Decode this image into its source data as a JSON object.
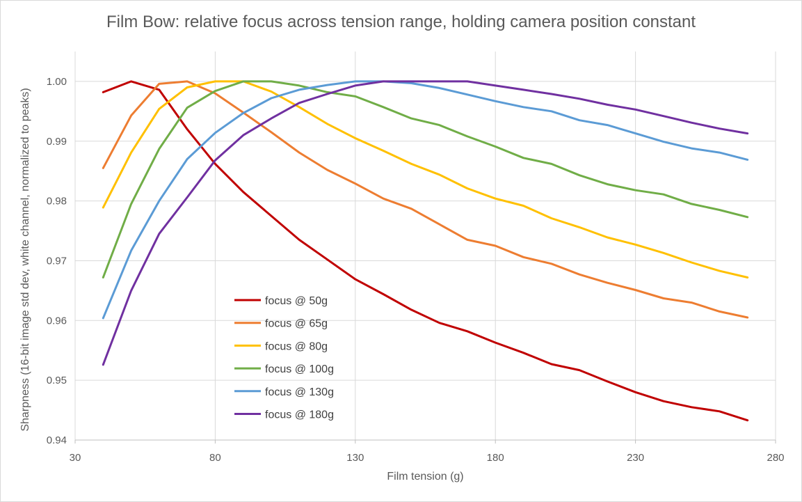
{
  "chart_data": {
    "type": "line",
    "title": "Film Bow: relative focus across tension range, holding camera position constant",
    "xlabel": "Film tension (g)",
    "ylabel": "Sharpness (16-bit image std dev, white channel, normalized to peaks)",
    "xlim": [
      30,
      280
    ],
    "ylim": [
      0.94,
      1.005
    ],
    "x_ticks": [
      "30",
      "80",
      "130",
      "180",
      "230",
      "280"
    ],
    "y_ticks": [
      "0.94",
      "0.95",
      "0.96",
      "0.97",
      "0.98",
      "0.99",
      "1.00"
    ],
    "grid": "horizontal",
    "legend_position": "lower-left inside plot",
    "x": [
      40,
      50,
      60,
      70,
      80,
      90,
      100,
      110,
      120,
      130,
      140,
      150,
      160,
      170,
      180,
      190,
      200,
      210,
      220,
      230,
      240,
      250,
      260,
      270
    ],
    "series": [
      {
        "name": "focus @ 50g",
        "color": "#c00000",
        "values": [
          0.9982,
          1.0,
          0.9986,
          0.992,
          0.9862,
          0.9815,
          0.9775,
          0.9735,
          0.9702,
          0.9669,
          0.9644,
          0.9618,
          0.9596,
          0.9582,
          0.9563,
          0.9546,
          0.9527,
          0.9517,
          0.9498,
          0.948,
          0.9465,
          0.9455,
          0.9448,
          0.9433
        ]
      },
      {
        "name": "focus @ 65g",
        "color": "#ed7d31",
        "values": [
          0.9855,
          0.9943,
          0.9996,
          1.0,
          0.998,
          0.9948,
          0.9915,
          0.9881,
          0.9852,
          0.9829,
          0.9804,
          0.9787,
          0.9761,
          0.9735,
          0.9725,
          0.9706,
          0.9695,
          0.9677,
          0.9663,
          0.9651,
          0.9637,
          0.963,
          0.9615,
          0.9605
        ]
      },
      {
        "name": "focus @ 80g",
        "color": "#ffc000",
        "values": [
          0.9789,
          0.9881,
          0.9954,
          0.999,
          1.0,
          1.0,
          0.9983,
          0.9957,
          0.9929,
          0.9905,
          0.9884,
          0.9862,
          0.9844,
          0.9821,
          0.9804,
          0.9792,
          0.9771,
          0.9756,
          0.9739,
          0.9727,
          0.9713,
          0.9697,
          0.9683,
          0.9672
        ]
      },
      {
        "name": "focus @ 100g",
        "color": "#70ad47",
        "values": [
          0.9672,
          0.9795,
          0.9887,
          0.9956,
          0.9984,
          1.0,
          1.0,
          0.9993,
          0.9982,
          0.9975,
          0.9957,
          0.9938,
          0.9927,
          0.9908,
          0.9891,
          0.9872,
          0.9862,
          0.9843,
          0.9828,
          0.9818,
          0.9811,
          0.9795,
          0.9785,
          0.9773
        ]
      },
      {
        "name": "focus @ 130g",
        "color": "#5b9bd5",
        "values": [
          0.9604,
          0.9717,
          0.98,
          0.987,
          0.9914,
          0.9947,
          0.9972,
          0.9986,
          0.9994,
          1.0,
          1.0,
          0.9997,
          0.9989,
          0.9978,
          0.9967,
          0.9957,
          0.995,
          0.9935,
          0.9927,
          0.9913,
          0.9899,
          0.9888,
          0.9881,
          0.9869
        ]
      },
      {
        "name": "focus @ 180g",
        "color": "#7030a0",
        "values": [
          0.9526,
          0.965,
          0.9745,
          0.9806,
          0.9868,
          0.991,
          0.9938,
          0.9964,
          0.9979,
          0.9993,
          1.0,
          1.0,
          1.0,
          1.0,
          0.9993,
          0.9986,
          0.9979,
          0.9971,
          0.9961,
          0.9953,
          0.9942,
          0.9931,
          0.9921,
          0.9913
        ]
      }
    ]
  }
}
